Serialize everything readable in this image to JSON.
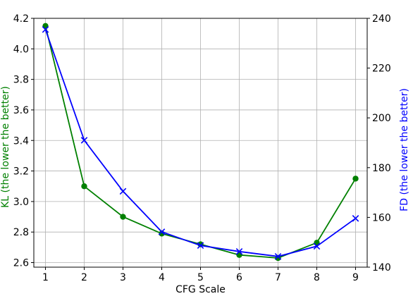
{
  "chart_data": {
    "type": "line",
    "xlabel": "CFG Scale",
    "x": [
      1,
      2,
      3,
      4,
      5,
      6,
      7,
      8,
      9
    ],
    "xticks": [
      "1",
      "2",
      "3",
      "4",
      "5",
      "6",
      "7",
      "8",
      "9"
    ],
    "xlim": [
      0.7,
      9.3
    ],
    "grid": true,
    "left_axis": {
      "label": "KL (the lower the better)",
      "color": "#008000",
      "ylim": [
        2.57,
        4.2
      ],
      "ticks": [
        2.6,
        2.8,
        3.0,
        3.2,
        3.4,
        3.6,
        3.8,
        4.0,
        4.2
      ],
      "tick_labels": [
        "2.6",
        "2.8",
        "3.0",
        "3.2",
        "3.4",
        "3.6",
        "3.8",
        "4.0",
        "4.2"
      ]
    },
    "right_axis": {
      "label": "FD (the lower the better)",
      "color": "#0000ff",
      "ylim": [
        140,
        240
      ],
      "ticks": [
        140,
        160,
        180,
        200,
        220,
        240
      ],
      "tick_labels": [
        "140",
        "160",
        "180",
        "200",
        "220",
        "240"
      ]
    },
    "series": [
      {
        "axis": "left",
        "color": "#008000",
        "marker": "circle",
        "values": [
          4.15,
          3.1,
          2.9,
          2.79,
          2.72,
          2.65,
          2.63,
          2.73,
          3.15
        ]
      },
      {
        "axis": "right",
        "color": "#0000ff",
        "marker": "x",
        "values": [
          235.5,
          191,
          170.5,
          154.2,
          148.7,
          146.3,
          144.3,
          148.4,
          159.6
        ]
      }
    ]
  }
}
